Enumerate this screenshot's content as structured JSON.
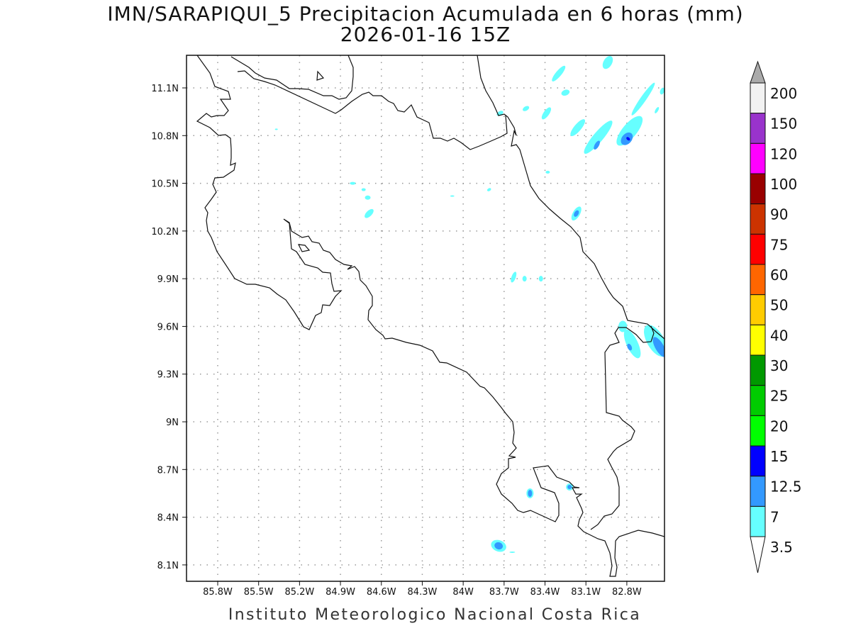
{
  "title": {
    "line1": "IMN/SARAPIQUI_5 Precipitacion Acumulada en 6 horas (mm)",
    "line2": "2026-01-16 15Z"
  },
  "footer": "Instituto Meteorologico Nacional Costa Rica",
  "chart_data": {
    "type": "map-contour",
    "variable": "Precipitacion Acumulada en 6 horas (mm)",
    "lon_range": [
      -86.03,
      -82.49
    ],
    "lat_range": [
      8.0,
      11.3
    ],
    "x_ticks": [
      "85.8W",
      "85.5W",
      "85.2W",
      "84.9W",
      "84.6W",
      "84.3W",
      "84W",
      "83.7W",
      "83.4W",
      "83.1W",
      "82.8W"
    ],
    "x_tick_values": [
      -85.8,
      -85.5,
      -85.2,
      -84.9,
      -84.6,
      -84.3,
      -84.0,
      -83.7,
      -83.4,
      -83.1,
      -82.8
    ],
    "y_ticks": [
      "11.1N",
      "10.8N",
      "10.5N",
      "10.2N",
      "9.9N",
      "9.6N",
      "9.3N",
      "9N",
      "8.7N",
      "8.4N",
      "8.1N"
    ],
    "y_tick_values": [
      11.1,
      10.8,
      10.5,
      10.2,
      9.9,
      9.6,
      9.3,
      9.0,
      8.7,
      8.4,
      8.1
    ],
    "grid": true,
    "legend": {
      "placement": "right",
      "labels": [
        "200",
        "150",
        "120",
        "100",
        "90",
        "75",
        "60",
        "50",
        "40",
        "30",
        "25",
        "20",
        "15",
        "12.5",
        "7",
        "3.5"
      ],
      "colors": [
        "#f2f2f2",
        "#9933cc",
        "#ff00ff",
        "#990000",
        "#cc3300",
        "#ff0000",
        "#ff6600",
        "#ffcc00",
        "#ffff00",
        "#009900",
        "#00cc00",
        "#00ff00",
        "#0000ff",
        "#3399ff",
        "#66ffff"
      ],
      "above_color": "#aaaaaa",
      "below_color": "#ffffff"
    },
    "level_colors": {
      "3.5": "#66ffff",
      "7": "#3399ff",
      "12.5": "#0000ff"
    },
    "cells": [
      {
        "lon": -82.94,
        "lat": 11.26,
        "level": "3.5"
      },
      {
        "lon": -83.3,
        "lat": 11.19,
        "level": "3.5"
      },
      {
        "lon": -83.25,
        "lat": 11.07,
        "level": "3.5"
      },
      {
        "lon": -83.39,
        "lat": 10.94,
        "level": "3.5"
      },
      {
        "lon": -83.54,
        "lat": 10.97,
        "level": "3.5"
      },
      {
        "lon": -83.73,
        "lat": 10.94,
        "level": "3.5"
      },
      {
        "lon": -83.16,
        "lat": 10.85,
        "level": "3.5"
      },
      {
        "lon": -83.01,
        "lat": 10.79,
        "level": "3.5"
      },
      {
        "lon": -83.02,
        "lat": 10.74,
        "level": "7"
      },
      {
        "lon": -82.78,
        "lat": 10.83,
        "level": "3.5"
      },
      {
        "lon": -82.68,
        "lat": 11.03,
        "level": "3.5"
      },
      {
        "lon": -82.8,
        "lat": 10.78,
        "level": "7"
      },
      {
        "lon": -82.79,
        "lat": 10.78,
        "level": "12.5"
      },
      {
        "lon": -82.54,
        "lat": 11.08,
        "level": "3.5"
      },
      {
        "lon": -82.58,
        "lat": 10.96,
        "level": "3.5"
      },
      {
        "lon": -83.38,
        "lat": 10.57,
        "level": "3.5"
      },
      {
        "lon": -83.17,
        "lat": 10.31,
        "level": "3.5"
      },
      {
        "lon": -83.17,
        "lat": 10.31,
        "level": "7"
      },
      {
        "lon": -84.81,
        "lat": 10.5,
        "level": "3.5"
      },
      {
        "lon": -84.73,
        "lat": 10.46,
        "level": "3.5"
      },
      {
        "lon": -84.7,
        "lat": 10.41,
        "level": "3.5"
      },
      {
        "lon": -84.69,
        "lat": 10.31,
        "level": "3.5"
      },
      {
        "lon": -85.37,
        "lat": 10.84,
        "level": "3.5"
      },
      {
        "lon": -84.08,
        "lat": 10.42,
        "level": "3.5"
      },
      {
        "lon": -83.81,
        "lat": 10.46,
        "level": "3.5"
      },
      {
        "lon": -83.63,
        "lat": 9.91,
        "level": "3.5"
      },
      {
        "lon": -83.55,
        "lat": 9.9,
        "level": "3.5"
      },
      {
        "lon": -83.43,
        "lat": 9.9,
        "level": "3.5"
      },
      {
        "lon": -82.76,
        "lat": 9.49,
        "level": "3.5"
      },
      {
        "lon": -82.83,
        "lat": 9.6,
        "level": "3.5"
      },
      {
        "lon": -82.78,
        "lat": 9.47,
        "level": "7"
      },
      {
        "lon": -82.59,
        "lat": 9.51,
        "level": "3.5"
      },
      {
        "lon": -82.56,
        "lat": 9.47,
        "level": "7"
      },
      {
        "lon": -83.51,
        "lat": 8.55,
        "level": "3.5"
      },
      {
        "lon": -83.51,
        "lat": 8.55,
        "level": "7"
      },
      {
        "lon": -83.22,
        "lat": 8.59,
        "level": "3.5"
      },
      {
        "lon": -83.22,
        "lat": 8.59,
        "level": "7"
      },
      {
        "lon": -83.74,
        "lat": 8.22,
        "level": "3.5"
      },
      {
        "lon": -83.74,
        "lat": 8.22,
        "level": "7"
      },
      {
        "lon": -83.64,
        "lat": 8.18,
        "level": "3.5"
      }
    ]
  }
}
